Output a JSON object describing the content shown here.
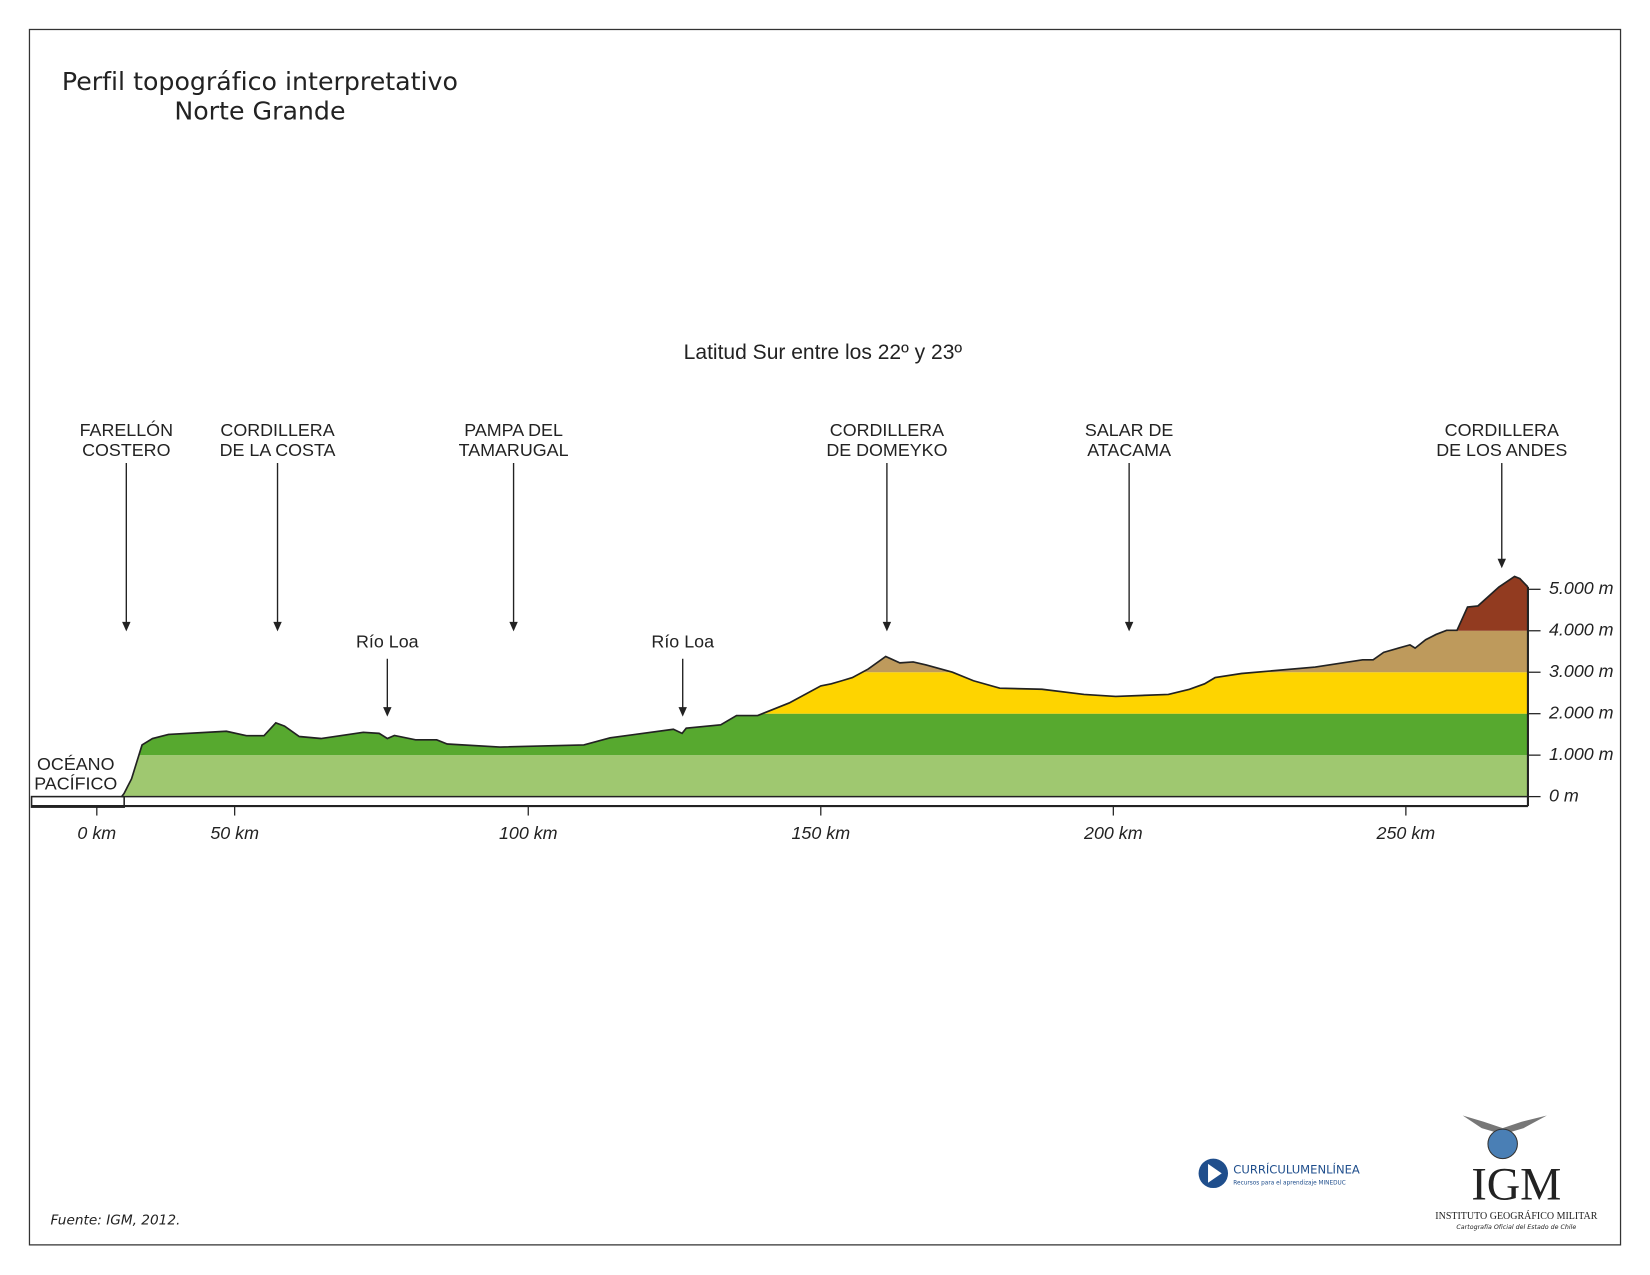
{
  "chart_data": {
    "type": "profile",
    "title": [
      "Perfil topográfico interpretativo",
      "Norte Grande"
    ],
    "subtitle": "Latitud Sur entre los 22º y 23º",
    "source": "Fuente: IGM,  2012.",
    "ocean_label": [
      "OCÉANO",
      "PACÍFICO"
    ],
    "x": [
      9,
      9.9,
      12.6,
      16.4,
      20.2,
      26,
      47,
      52,
      55,
      57,
      58.5,
      61,
      64.7,
      71.9,
      74.6,
      76,
      77.2,
      80.8,
      84.4,
      86.2,
      95.2,
      109.5,
      114,
      124.8,
      126.3,
      127,
      132.9,
      135.6,
      139.2,
      144.6,
      150,
      151.8,
      153.6,
      155.4,
      158.1,
      161.1,
      163.5,
      165.8,
      168,
      172.5,
      176.1,
      180.6,
      187.8,
      195,
      200.4,
      209.4,
      213,
      215.6,
      217.4,
      221.9,
      234.5,
      242.6,
      244.4,
      246.2,
      250.7,
      251.6,
      253.4,
      255.2,
      257,
      258.8,
      260.6,
      262.4,
      266,
      268.7,
      269.6,
      271
    ],
    "values": [
      0,
      76,
      430,
      1245,
      1400,
      1500,
      1575,
      1470,
      1470,
      1780,
      1700,
      1450,
      1400,
      1550,
      1525,
      1400,
      1475,
      1370,
      1370,
      1270,
      1195,
      1245,
      1420,
      1625,
      1525,
      1650,
      1730,
      1955,
      1955,
      2260,
      2670,
      2720,
      2795,
      2870,
      3075,
      3380,
      3225,
      3250,
      3175,
      3000,
      2795,
      2615,
      2590,
      2465,
      2415,
      2465,
      2590,
      2720,
      2870,
      2970,
      3125,
      3300,
      3300,
      3480,
      3660,
      3580,
      3785,
      3910,
      4010,
      4010,
      4570,
      4600,
      5055,
      5310,
      5260,
      5055
    ],
    "elevation_bands": [
      {
        "min": 0,
        "max": 1000,
        "color": "#9fc870"
      },
      {
        "min": 1000,
        "max": 2000,
        "color": "#57a92f"
      },
      {
        "min": 2000,
        "max": 3000,
        "color": "#fed400"
      },
      {
        "min": 3000,
        "max": 4000,
        "color": "#be9a5c"
      },
      {
        "min": 4000,
        "max": 6000,
        "color": "#923b20"
      }
    ],
    "xlim": [
      -23,
      271
    ],
    "ylim": [
      0,
      5000
    ],
    "xticks": [
      {
        "value": 0,
        "label": "0 km"
      },
      {
        "value": 50,
        "label": "50 km"
      },
      {
        "value": 100,
        "label": "100 km"
      },
      {
        "value": 150,
        "label": "150 km"
      },
      {
        "value": 200,
        "label": "200 km"
      },
      {
        "value": 250,
        "label": "250 km"
      }
    ],
    "yticks": [
      {
        "value": 0,
        "label": "0 m"
      },
      {
        "value": 1000,
        "label": "1.000 m"
      },
      {
        "value": 2000,
        "label": "2.000 m"
      },
      {
        "value": 3000,
        "label": "3.000 m"
      },
      {
        "value": 4000,
        "label": "4.000 m"
      },
      {
        "value": 5000,
        "label": "5.000 m"
      }
    ],
    "annotations": [
      {
        "text": [
          "FARELLÓN",
          "COSTERO"
        ],
        "x": 10.7
      },
      {
        "text": [
          "CORDILLERA",
          "DE LA COSTA"
        ],
        "x": 57.3
      },
      {
        "text": [
          "PAMPA DEL",
          "TAMARUGAL"
        ],
        "x": 97.5
      },
      {
        "text": [
          "CORDILLERA",
          "DE DOMEYKO"
        ],
        "x": 161.3
      },
      {
        "text": [
          "SALAR DE",
          "ATACAMA"
        ],
        "x": 202.7
      },
      {
        "text": [
          "CORDILLERA",
          "DE LOS ANDES"
        ],
        "x": 266.5
      },
      {
        "text": [
          "Río Loa"
        ],
        "x": 76
      },
      {
        "text": [
          "Río Loa"
        ],
        "x": 126.4
      }
    ]
  },
  "logos": {
    "curriculum": "CURRÍCULUMENLÍNEA",
    "curriculum_sub": "Recursos para el aprendizaje MINEDUC",
    "igm": "IGM",
    "igm_name": "INSTITUTO GEOGRÁFICO MILITAR",
    "igm_sub": "Cartografía Oficial del Estado de Chile"
  }
}
